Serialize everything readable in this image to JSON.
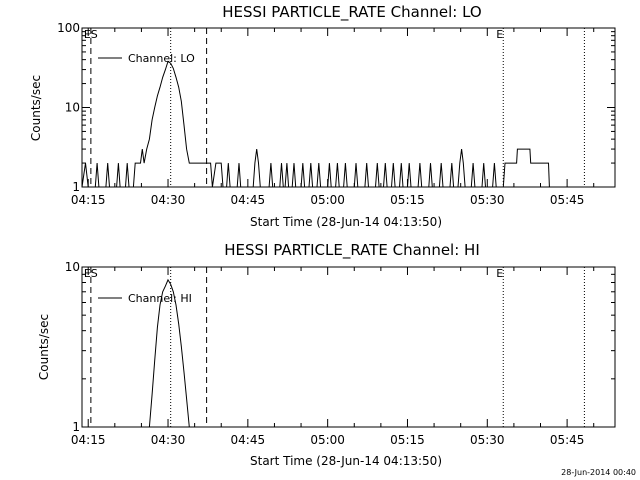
{
  "chart_data": [
    {
      "type": "line",
      "title": "HESSI PARTICLE_RATE Channel: LO",
      "xlabel": "Start Time (28-Jun-14 04:13:50)",
      "ylabel": "Counts/sec",
      "yscale": "log",
      "xlim": [
        "04:13:50",
        "05:54:00"
      ],
      "ylim": [
        1,
        100
      ],
      "xticks": [
        "04:15",
        "04:30",
        "04:45",
        "05:00",
        "05:15",
        "05:30",
        "05:45"
      ],
      "yticks": [
        "1",
        "10",
        "100"
      ],
      "legend": {
        "position": "top-left",
        "entries": [
          "Channel: LO"
        ]
      },
      "markers": [
        {
          "time": "04:15:30",
          "style": "dashed",
          "label": "ES"
        },
        {
          "time": "04:30:30",
          "style": "dotted",
          "label": ""
        },
        {
          "time": "04:37:15",
          "style": "dashed",
          "label": ""
        },
        {
          "time": "05:33:00",
          "style": "dotted",
          "label": "E"
        },
        {
          "time": "05:48:15",
          "style": "dotted",
          "label": ""
        }
      ],
      "series": [
        {
          "name": "Channel: LO",
          "points": [
            [
              "04:13:50",
              1
            ],
            [
              "04:14:30",
              2
            ],
            [
              "04:15:00",
              1
            ],
            [
              "04:16:20",
              1
            ],
            [
              "04:16:40",
              2
            ],
            [
              "04:17:00",
              1
            ],
            [
              "04:18:20",
              1
            ],
            [
              "04:18:40",
              2
            ],
            [
              "04:19:00",
              1
            ],
            [
              "04:20:20",
              1
            ],
            [
              "04:20:40",
              2
            ],
            [
              "04:21:00",
              1
            ],
            [
              "04:22:00",
              1
            ],
            [
              "04:22:20",
              2
            ],
            [
              "04:22:40",
              1
            ],
            [
              "04:23:30",
              1
            ],
            [
              "04:23:50",
              2
            ],
            [
              "04:24:50",
              2
            ],
            [
              "04:25:10",
              3
            ],
            [
              "04:25:30",
              2
            ],
            [
              "04:26:00",
              3
            ],
            [
              "04:26:30",
              4
            ],
            [
              "04:27:00",
              7
            ],
            [
              "04:27:30",
              10
            ],
            [
              "04:28:00",
              14
            ],
            [
              "04:28:30",
              18
            ],
            [
              "04:29:00",
              24
            ],
            [
              "04:29:30",
              30
            ],
            [
              "04:30:00",
              38
            ],
            [
              "04:30:30",
              36
            ],
            [
              "04:31:00",
              31
            ],
            [
              "04:31:30",
              24
            ],
            [
              "04:32:00",
              18
            ],
            [
              "04:32:30",
              12
            ],
            [
              "04:33:00",
              6
            ],
            [
              "04:33:30",
              3
            ],
            [
              "04:34:00",
              2
            ],
            [
              "04:38:00",
              2
            ],
            [
              "04:38:20",
              1
            ],
            [
              "04:39:00",
              2
            ],
            [
              "04:40:00",
              2
            ],
            [
              "04:40:20",
              1
            ],
            [
              "04:41:00",
              1
            ],
            [
              "04:41:20",
              2
            ],
            [
              "04:41:40",
              1
            ],
            [
              "04:43:00",
              1
            ],
            [
              "04:43:20",
              2
            ],
            [
              "04:43:40",
              1
            ],
            [
              "04:46:00",
              1
            ],
            [
              "04:46:20",
              2
            ],
            [
              "04:46:40",
              3
            ],
            [
              "04:47:00",
              2
            ],
            [
              "04:47:20",
              1
            ],
            [
              "04:49:00",
              1
            ],
            [
              "04:49:20",
              2
            ],
            [
              "04:49:40",
              1
            ],
            [
              "04:51:00",
              1
            ],
            [
              "04:51:20",
              2
            ],
            [
              "04:51:40",
              1
            ],
            [
              "04:52:00",
              1
            ],
            [
              "04:52:20",
              2
            ],
            [
              "04:52:40",
              1
            ],
            [
              "04:53:20",
              1
            ],
            [
              "04:53:40",
              2
            ],
            [
              "04:54:00",
              1
            ],
            [
              "04:55:00",
              1
            ],
            [
              "04:55:20",
              2
            ],
            [
              "04:55:40",
              1
            ],
            [
              "04:56:30",
              1
            ],
            [
              "04:56:50",
              2
            ],
            [
              "04:57:10",
              1
            ],
            [
              "04:58:00",
              1
            ],
            [
              "04:58:20",
              2
            ],
            [
              "04:58:40",
              1
            ],
            [
              "05:00:00",
              1
            ],
            [
              "05:00:20",
              2
            ],
            [
              "05:00:40",
              1
            ],
            [
              "05:01:30",
              1
            ],
            [
              "05:01:50",
              2
            ],
            [
              "05:02:10",
              1
            ],
            [
              "05:03:00",
              1
            ],
            [
              "05:03:20",
              2
            ],
            [
              "05:03:40",
              1
            ],
            [
              "05:05:00",
              1
            ],
            [
              "05:05:20",
              2
            ],
            [
              "05:05:40",
              1
            ],
            [
              "05:07:00",
              1
            ],
            [
              "05:07:20",
              2
            ],
            [
              "05:07:40",
              1
            ],
            [
              "05:09:00",
              1
            ],
            [
              "05:09:20",
              2
            ],
            [
              "05:09:40",
              1
            ],
            [
              "05:10:30",
              1
            ],
            [
              "05:10:50",
              2
            ],
            [
              "05:11:10",
              1
            ],
            [
              "05:12:00",
              1
            ],
            [
              "05:12:20",
              2
            ],
            [
              "05:12:40",
              1
            ],
            [
              "05:13:30",
              1
            ],
            [
              "05:13:50",
              2
            ],
            [
              "05:14:10",
              1
            ],
            [
              "05:15:00",
              1
            ],
            [
              "05:15:20",
              2
            ],
            [
              "05:15:40",
              1
            ],
            [
              "05:17:00",
              1
            ],
            [
              "05:17:20",
              2
            ],
            [
              "05:17:40",
              1
            ],
            [
              "05:19:00",
              1
            ],
            [
              "05:19:20",
              2
            ],
            [
              "05:19:40",
              1
            ],
            [
              "05:21:00",
              1
            ],
            [
              "05:21:20",
              2
            ],
            [
              "05:21:40",
              1
            ],
            [
              "05:23:00",
              1
            ],
            [
              "05:23:20",
              2
            ],
            [
              "05:23:40",
              1
            ],
            [
              "05:24:30",
              1
            ],
            [
              "05:24:50",
              2
            ],
            [
              "05:25:10",
              3
            ],
            [
              "05:25:30",
              2
            ],
            [
              "05:25:50",
              1
            ],
            [
              "05:27:00",
              1
            ],
            [
              "05:27:20",
              2
            ],
            [
              "05:27:40",
              1
            ],
            [
              "05:29:00",
              1
            ],
            [
              "05:29:20",
              2
            ],
            [
              "05:29:40",
              1
            ],
            [
              "05:31:00",
              1
            ],
            [
              "05:31:20",
              2
            ],
            [
              "05:31:40",
              1
            ],
            [
              "05:33:00",
              1
            ],
            [
              "05:33:20",
              2
            ],
            [
              "05:35:30",
              2
            ],
            [
              "05:35:40",
              3
            ],
            [
              "05:38:00",
              3
            ],
            [
              "05:38:10",
              2
            ],
            [
              "05:41:30",
              2
            ],
            [
              "05:41:40",
              1
            ],
            [
              "05:42:00",
              1
            ]
          ]
        }
      ]
    },
    {
      "type": "line",
      "title": "HESSI PARTICLE_RATE Channel: HI",
      "xlabel": "Start Time (28-Jun-14 04:13:50)",
      "ylabel": "Counts/sec",
      "yscale": "log",
      "xlim": [
        "04:13:50",
        "05:54:00"
      ],
      "ylim": [
        1,
        10
      ],
      "xticks": [
        "04:15",
        "04:30",
        "04:45",
        "05:00",
        "05:15",
        "05:30",
        "05:45"
      ],
      "yticks": [
        "1",
        "10"
      ],
      "legend": {
        "position": "top-left",
        "entries": [
          "Channel: HI"
        ]
      },
      "markers": [
        {
          "time": "04:15:30",
          "style": "dashed",
          "label": "ES"
        },
        {
          "time": "04:30:30",
          "style": "dotted",
          "label": ""
        },
        {
          "time": "04:37:15",
          "style": "dashed",
          "label": ""
        },
        {
          "time": "05:33:00",
          "style": "dotted",
          "label": "E"
        },
        {
          "time": "05:48:15",
          "style": "dotted",
          "label": ""
        }
      ],
      "series": [
        {
          "name": "Channel: HI",
          "points": [
            [
              "04:26:30",
              1
            ],
            [
              "04:27:00",
              1.6
            ],
            [
              "04:27:30",
              2.6
            ],
            [
              "04:28:00",
              4.2
            ],
            [
              "04:28:30",
              5.8
            ],
            [
              "04:29:00",
              7
            ],
            [
              "04:29:30",
              7.6
            ],
            [
              "04:30:00",
              8.3
            ],
            [
              "04:30:30",
              7.8
            ],
            [
              "04:31:00",
              7
            ],
            [
              "04:31:30",
              5.8
            ],
            [
              "04:32:00",
              4.4
            ],
            [
              "04:32:30",
              3.2
            ],
            [
              "04:33:00",
              2.2
            ],
            [
              "04:33:30",
              1.5
            ],
            [
              "04:34:00",
              1
            ]
          ]
        }
      ]
    }
  ],
  "footer": "28-Jun-2014 00:40"
}
